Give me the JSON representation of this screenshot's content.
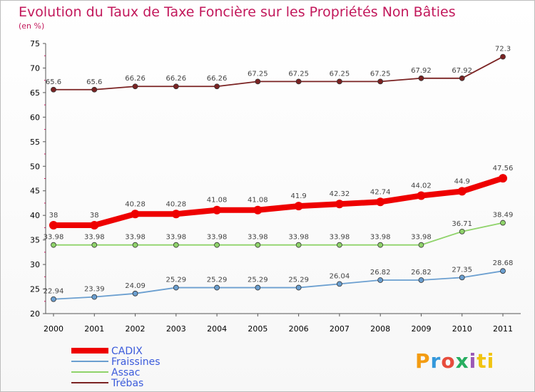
{
  "chart_data": {
    "type": "line",
    "title": "Evolution du Taux de Taxe Foncière sur les Propriétés Non Bâties",
    "ylabel": "(en %)",
    "xlabel": "",
    "ylim": [
      20,
      75
    ],
    "yticks": [
      20,
      25,
      30,
      35,
      40,
      45,
      50,
      55,
      60,
      65,
      70,
      75
    ],
    "x": [
      "2000",
      "2001",
      "2002",
      "2003",
      "2004",
      "2005",
      "2006",
      "2007",
      "2008",
      "2009",
      "2010",
      "2011"
    ],
    "series": [
      {
        "name": "Trébas",
        "color": "#7b2323",
        "values": [
          65.6,
          65.6,
          66.26,
          66.26,
          66.26,
          67.25,
          67.25,
          67.25,
          67.25,
          67.92,
          67.92,
          72.3
        ],
        "labels": [
          "65.6",
          "65.6",
          "66.26",
          "66.26",
          "66.26",
          "67.25",
          "67.25",
          "67.25",
          "67.25",
          "67.92",
          "67.92",
          "72.3"
        ]
      },
      {
        "name": "CADIX",
        "color": "#ee0000",
        "values": [
          38,
          38,
          40.28,
          40.28,
          41.08,
          41.08,
          41.9,
          42.32,
          42.74,
          44.02,
          44.9,
          47.56
        ],
        "labels": [
          "38",
          "38",
          "40.28",
          "40.28",
          "41.08",
          "41.08",
          "41.9",
          "42.32",
          "42.74",
          "44.02",
          "44.9",
          "47.56"
        ]
      },
      {
        "name": "Assac",
        "color": "#8fd36a",
        "values": [
          33.98,
          33.98,
          33.98,
          33.98,
          33.98,
          33.98,
          33.98,
          33.98,
          33.98,
          33.98,
          36.71,
          38.49
        ],
        "labels": [
          "33.98",
          "33.98",
          "33.98",
          "33.98",
          "33.98",
          "33.98",
          "33.98",
          "33.98",
          "33.98",
          "33.98",
          "36.71",
          "38.49"
        ]
      },
      {
        "name": "Fraissines",
        "color": "#6b9fd0",
        "values": [
          22.94,
          23.39,
          24.09,
          25.29,
          25.29,
          25.29,
          25.29,
          26.04,
          26.82,
          26.82,
          27.35,
          28.68
        ],
        "labels": [
          "22.94",
          "23.39",
          "24.09",
          "25.29",
          "25.29",
          "25.29",
          "25.29",
          "26.04",
          "26.82",
          "26.82",
          "27.35",
          "28.68"
        ]
      }
    ],
    "legend": [
      "CADIX",
      "Fraissines",
      "Assac",
      "Trébas"
    ],
    "legend_position": "bottom-left"
  },
  "logo": [
    "P",
    "r",
    "o",
    "x",
    "i",
    "ti"
  ]
}
